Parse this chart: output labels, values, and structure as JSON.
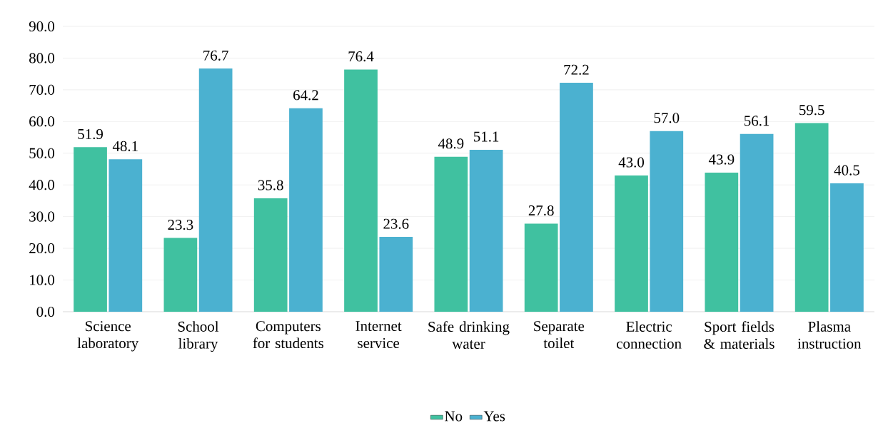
{
  "chart_data": {
    "type": "bar",
    "categories": [
      "Science laboratory",
      "School library",
      "Computers for students",
      "Internet service",
      "Safe drinking water",
      "Separate toilet",
      "Electric connection",
      "Sport fields & materials",
      "Plasma instruction"
    ],
    "series": [
      {
        "name": "No",
        "color": "#40c1a0",
        "values": [
          51.9,
          23.3,
          35.8,
          76.4,
          48.9,
          27.8,
          43.0,
          43.9,
          59.5
        ],
        "value_labels": [
          "51.9",
          "23.3",
          "35.8",
          "76.4",
          "48.9",
          "27.8",
          "43.0",
          "43.9",
          "59.5"
        ]
      },
      {
        "name": "Yes",
        "color": "#4bb1d0",
        "values": [
          48.1,
          76.7,
          64.2,
          23.6,
          51.1,
          72.2,
          57.0,
          56.1,
          40.5
        ],
        "value_labels": [
          "48.1",
          "76.7",
          "64.2",
          "23.6",
          "51.1",
          "72.2",
          "57.0",
          "56.1",
          "40.5"
        ]
      }
    ],
    "ylim": [
      0,
      90
    ],
    "yticks": [
      {
        "value": 0,
        "label": "0.0"
      },
      {
        "value": 10,
        "label": "10.0"
      },
      {
        "value": 20,
        "label": "20.0"
      },
      {
        "value": 30,
        "label": "30.0"
      },
      {
        "value": 40,
        "label": "40.0"
      },
      {
        "value": 50,
        "label": "50.0"
      },
      {
        "value": 60,
        "label": "60.0"
      },
      {
        "value": 70,
        "label": "70.0"
      },
      {
        "value": 80,
        "label": "80.0"
      },
      {
        "value": 90,
        "label": "90.0"
      }
    ],
    "grid": "y",
    "legend": "bottom"
  }
}
